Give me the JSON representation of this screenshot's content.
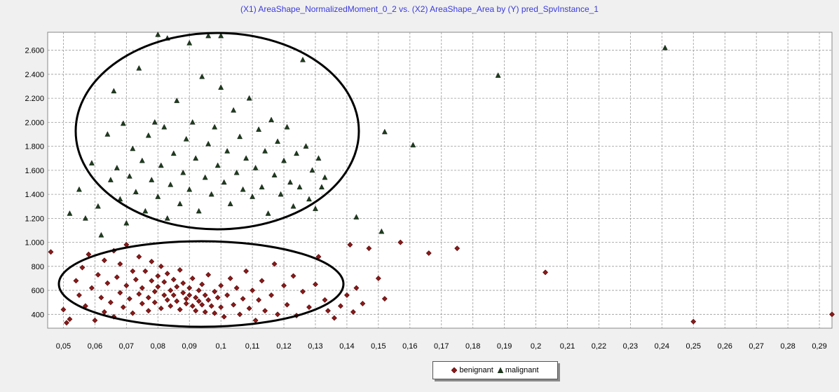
{
  "chart_data": {
    "type": "scatter",
    "title": "(X1) AreaShape_NormalizedMoment_0_2 vs. (X2) AreaShape_Area by (Y) pred_SpvInstance_1",
    "xlabel": "",
    "ylabel": "",
    "xlim": [
      0.045,
      0.294
    ],
    "ylim": [
      285,
      2750
    ],
    "x_ticks": [
      0.05,
      0.06,
      0.07,
      0.08,
      0.09,
      0.1,
      0.11,
      0.12,
      0.13,
      0.14,
      0.15,
      0.16,
      0.17,
      0.18,
      0.19,
      0.2,
      0.21,
      0.22,
      0.23,
      0.24,
      0.25,
      0.26,
      0.27,
      0.28,
      0.29
    ],
    "x_tick_labels": [
      "0,05",
      "0,06",
      "0,07",
      "0,08",
      "0,09",
      "0,1",
      "0,11",
      "0,12",
      "0,13",
      "0,14",
      "0,15",
      "0,16",
      "0,17",
      "0,18",
      "0,19",
      "0,2",
      "0,21",
      "0,22",
      "0,23",
      "0,24",
      "0,25",
      "0,26",
      "0,27",
      "0,28",
      "0,29"
    ],
    "y_ticks": [
      400,
      600,
      800,
      1000,
      1200,
      1400,
      1600,
      1800,
      2000,
      2200,
      2400,
      2600
    ],
    "y_tick_labels": [
      "400",
      "600",
      "800",
      "1.000",
      "1.200",
      "1.400",
      "1.600",
      "1.800",
      "2.000",
      "2.200",
      "2.400",
      "2.600"
    ],
    "grid": true,
    "legend_position": "bottom-center",
    "series": [
      {
        "name": "benignant",
        "marker": "diamond",
        "color": "#8b1a1a",
        "points": [
          [
            0.046,
            920
          ],
          [
            0.05,
            440
          ],
          [
            0.051,
            330
          ],
          [
            0.052,
            360
          ],
          [
            0.054,
            680
          ],
          [
            0.055,
            560
          ],
          [
            0.056,
            790
          ],
          [
            0.057,
            470
          ],
          [
            0.058,
            900
          ],
          [
            0.059,
            620
          ],
          [
            0.06,
            350
          ],
          [
            0.061,
            730
          ],
          [
            0.062,
            540
          ],
          [
            0.063,
            850
          ],
          [
            0.063,
            420
          ],
          [
            0.064,
            660
          ],
          [
            0.065,
            500
          ],
          [
            0.066,
            930
          ],
          [
            0.066,
            380
          ],
          [
            0.067,
            710
          ],
          [
            0.068,
            580
          ],
          [
            0.068,
            820
          ],
          [
            0.069,
            460
          ],
          [
            0.07,
            640
          ],
          [
            0.07,
            980
          ],
          [
            0.071,
            530
          ],
          [
            0.072,
            760
          ],
          [
            0.072,
            410
          ],
          [
            0.073,
            690
          ],
          [
            0.074,
            570
          ],
          [
            0.074,
            880
          ],
          [
            0.075,
            490
          ],
          [
            0.075,
            620
          ],
          [
            0.076,
            760
          ],
          [
            0.077,
            540
          ],
          [
            0.077,
            430
          ],
          [
            0.078,
            680
          ],
          [
            0.078,
            840
          ],
          [
            0.079,
            590
          ],
          [
            0.079,
            500
          ],
          [
            0.08,
            720
          ],
          [
            0.08,
            630
          ],
          [
            0.081,
            450
          ],
          [
            0.081,
            800
          ],
          [
            0.082,
            560
          ],
          [
            0.082,
            670
          ],
          [
            0.083,
            520
          ],
          [
            0.083,
            740
          ],
          [
            0.084,
            600
          ],
          [
            0.084,
            470
          ],
          [
            0.085,
            690
          ],
          [
            0.085,
            560
          ],
          [
            0.086,
            630
          ],
          [
            0.086,
            510
          ],
          [
            0.087,
            770
          ],
          [
            0.087,
            440
          ],
          [
            0.088,
            580
          ],
          [
            0.088,
            660
          ],
          [
            0.089,
            530
          ],
          [
            0.089,
            490
          ],
          [
            0.09,
            620
          ],
          [
            0.09,
            560
          ],
          [
            0.091,
            470
          ],
          [
            0.091,
            700
          ],
          [
            0.092,
            540
          ],
          [
            0.092,
            430
          ],
          [
            0.093,
            600
          ],
          [
            0.093,
            510
          ],
          [
            0.094,
            480
          ],
          [
            0.094,
            650
          ],
          [
            0.095,
            560
          ],
          [
            0.095,
            420
          ],
          [
            0.096,
            520
          ],
          [
            0.096,
            730
          ],
          [
            0.097,
            470
          ],
          [
            0.098,
            590
          ],
          [
            0.098,
            410
          ],
          [
            0.099,
            540
          ],
          [
            0.1,
            640
          ],
          [
            0.1,
            460
          ],
          [
            0.101,
            380
          ],
          [
            0.102,
            560
          ],
          [
            0.103,
            700
          ],
          [
            0.104,
            480
          ],
          [
            0.105,
            620
          ],
          [
            0.106,
            400
          ],
          [
            0.107,
            530
          ],
          [
            0.108,
            760
          ],
          [
            0.109,
            450
          ],
          [
            0.11,
            600
          ],
          [
            0.111,
            350
          ],
          [
            0.112,
            520
          ],
          [
            0.113,
            680
          ],
          [
            0.114,
            430
          ],
          [
            0.116,
            560
          ],
          [
            0.117,
            820
          ],
          [
            0.118,
            400
          ],
          [
            0.12,
            640
          ],
          [
            0.121,
            480
          ],
          [
            0.123,
            720
          ],
          [
            0.124,
            390
          ],
          [
            0.126,
            590
          ],
          [
            0.128,
            460
          ],
          [
            0.13,
            650
          ],
          [
            0.131,
            880
          ],
          [
            0.133,
            520
          ],
          [
            0.134,
            430
          ],
          [
            0.136,
            370
          ],
          [
            0.138,
            470
          ],
          [
            0.14,
            560
          ],
          [
            0.141,
            980
          ],
          [
            0.142,
            420
          ],
          [
            0.143,
            620
          ],
          [
            0.145,
            490
          ],
          [
            0.147,
            950
          ],
          [
            0.15,
            700
          ],
          [
            0.152,
            530
          ],
          [
            0.157,
            1000
          ],
          [
            0.166,
            910
          ],
          [
            0.175,
            950
          ],
          [
            0.203,
            750
          ],
          [
            0.25,
            340
          ],
          [
            0.294,
            400
          ]
        ]
      },
      {
        "name": "malignant",
        "marker": "triangle",
        "color": "#1e3d1e",
        "points": [
          [
            0.052,
            1240
          ],
          [
            0.055,
            1440
          ],
          [
            0.057,
            1200
          ],
          [
            0.059,
            1660
          ],
          [
            0.061,
            1300
          ],
          [
            0.062,
            1060
          ],
          [
            0.064,
            1900
          ],
          [
            0.065,
            1520
          ],
          [
            0.066,
            2260
          ],
          [
            0.067,
            1620
          ],
          [
            0.068,
            1360
          ],
          [
            0.069,
            1990
          ],
          [
            0.07,
            1160
          ],
          [
            0.071,
            1550
          ],
          [
            0.072,
            1780
          ],
          [
            0.073,
            1420
          ],
          [
            0.074,
            2450
          ],
          [
            0.075,
            1680
          ],
          [
            0.076,
            1260
          ],
          [
            0.077,
            1890
          ],
          [
            0.078,
            1520
          ],
          [
            0.079,
            2000
          ],
          [
            0.08,
            1380
          ],
          [
            0.08,
            2730
          ],
          [
            0.081,
            1640
          ],
          [
            0.082,
            1960
          ],
          [
            0.083,
            1200
          ],
          [
            0.083,
            2700
          ],
          [
            0.084,
            1480
          ],
          [
            0.085,
            1740
          ],
          [
            0.086,
            2180
          ],
          [
            0.087,
            1320
          ],
          [
            0.088,
            1580
          ],
          [
            0.089,
            1860
          ],
          [
            0.09,
            1440
          ],
          [
            0.09,
            2660
          ],
          [
            0.091,
            2000
          ],
          [
            0.092,
            1700
          ],
          [
            0.093,
            1260
          ],
          [
            0.094,
            2380
          ],
          [
            0.095,
            1540
          ],
          [
            0.096,
            1820
          ],
          [
            0.096,
            2720
          ],
          [
            0.097,
            1400
          ],
          [
            0.098,
            1960
          ],
          [
            0.099,
            1640
          ],
          [
            0.1,
            2290
          ],
          [
            0.1,
            2720
          ],
          [
            0.101,
            1500
          ],
          [
            0.102,
            1760
          ],
          [
            0.103,
            1320
          ],
          [
            0.104,
            2100
          ],
          [
            0.105,
            1580
          ],
          [
            0.106,
            1880
          ],
          [
            0.107,
            1440
          ],
          [
            0.108,
            1700
          ],
          [
            0.109,
            2200
          ],
          [
            0.11,
            1380
          ],
          [
            0.111,
            1620
          ],
          [
            0.112,
            1940
          ],
          [
            0.113,
            1460
          ],
          [
            0.114,
            1760
          ],
          [
            0.115,
            1240
          ],
          [
            0.116,
            2020
          ],
          [
            0.117,
            1560
          ],
          [
            0.118,
            1840
          ],
          [
            0.119,
            1400
          ],
          [
            0.12,
            1680
          ],
          [
            0.121,
            1960
          ],
          [
            0.122,
            1500
          ],
          [
            0.123,
            1300
          ],
          [
            0.124,
            1740
          ],
          [
            0.125,
            1460
          ],
          [
            0.126,
            2520
          ],
          [
            0.127,
            1800
          ],
          [
            0.128,
            1360
          ],
          [
            0.129,
            1600
          ],
          [
            0.13,
            1280
          ],
          [
            0.131,
            1700
          ],
          [
            0.132,
            1460
          ],
          [
            0.133,
            1540
          ],
          [
            0.143,
            1210
          ],
          [
            0.151,
            1090
          ],
          [
            0.152,
            1920
          ],
          [
            0.161,
            1810
          ],
          [
            0.188,
            2390
          ],
          [
            0.241,
            2620
          ]
        ]
      }
    ],
    "annotations": [
      {
        "type": "ellipse",
        "label": ""
      },
      {
        "type": "ellipse",
        "label": ""
      }
    ]
  },
  "legend": {
    "items": [
      {
        "label": "benignant"
      },
      {
        "label": "malignant"
      }
    ]
  }
}
